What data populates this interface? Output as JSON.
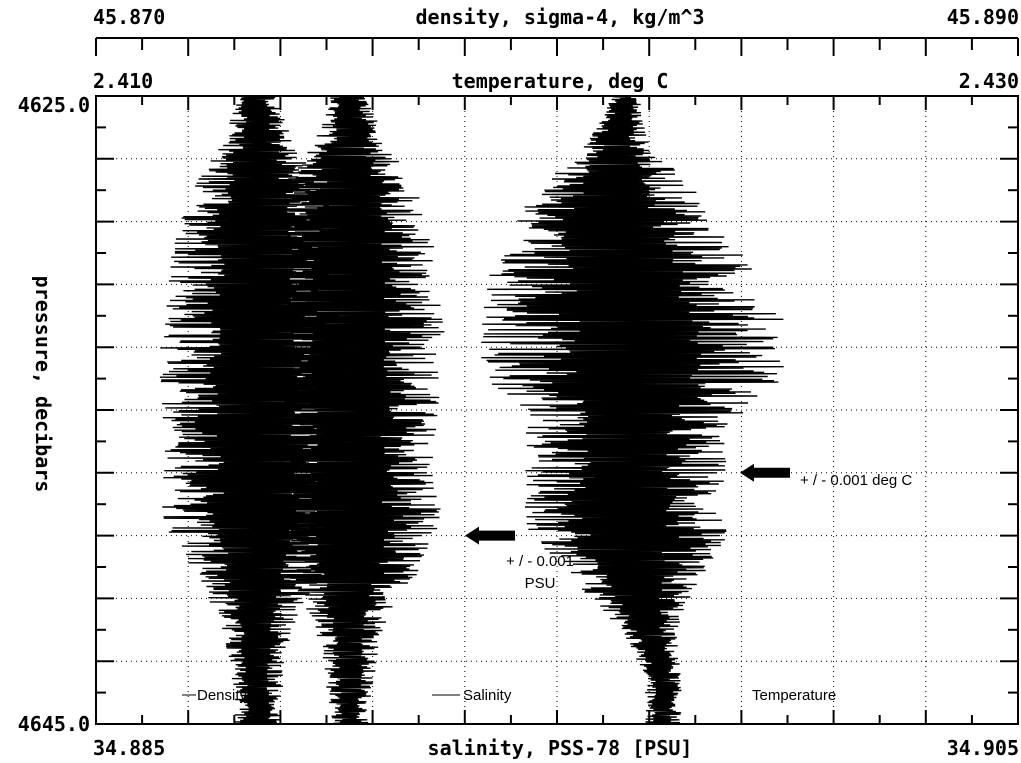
{
  "chart_data": {
    "type": "line",
    "axes": {
      "top_density": {
        "label": "density, sigma-4, kg/m^3",
        "min_label": "45.870",
        "max_label": "45.890",
        "range": [
          45.87,
          45.89
        ]
      },
      "top_temperature": {
        "label": "temperature, deg C",
        "min_label": "2.410",
        "max_label": "2.430",
        "range": [
          2.41,
          2.43
        ]
      },
      "bottom_salinity": {
        "label": "salinity, PSS-78 [PSU]",
        "min_label": "34.885",
        "max_label": "34.905",
        "range": [
          34.885,
          34.905
        ]
      },
      "y_pressure": {
        "label": "pressure, decibars",
        "top_label": "4625.0",
        "bottom_label": "4645.0",
        "range": [
          4625.0,
          4645.0
        ],
        "inverted": true
      }
    },
    "grid": true,
    "series": [
      {
        "name": "Density",
        "axis": "top_density",
        "color": "#000000",
        "center": 45.8755,
        "profile": [
          {
            "p": 4625.0,
            "halfwidth": 0.0004
          },
          {
            "p": 4626.5,
            "halfwidth": 0.0008
          },
          {
            "p": 4628.0,
            "halfwidth": 0.0015
          },
          {
            "p": 4630.0,
            "halfwidth": 0.0019
          },
          {
            "p": 4633.0,
            "halfwidth": 0.0021
          },
          {
            "p": 4636.0,
            "halfwidth": 0.0019
          },
          {
            "p": 4638.5,
            "halfwidth": 0.002
          },
          {
            "p": 4640.0,
            "halfwidth": 0.0016
          },
          {
            "p": 4641.5,
            "halfwidth": 0.0009
          },
          {
            "p": 4643.0,
            "halfwidth": 0.0006
          },
          {
            "p": 4645.0,
            "halfwidth": 0.0004
          }
        ]
      },
      {
        "name": "Salinity",
        "axis": "bottom_salinity",
        "color": "#000000",
        "center": 34.8885,
        "profile": [
          {
            "p": 4625.0,
            "halfwidth": 0.0004
          },
          {
            "p": 4626.5,
            "halfwidth": 0.0008
          },
          {
            "p": 4628.0,
            "halfwidth": 0.0015
          },
          {
            "p": 4630.0,
            "halfwidth": 0.0019
          },
          {
            "p": 4633.0,
            "halfwidth": 0.0022
          },
          {
            "p": 4636.0,
            "halfwidth": 0.002
          },
          {
            "p": 4638.5,
            "halfwidth": 0.0021
          },
          {
            "p": 4640.0,
            "halfwidth": 0.0015
          },
          {
            "p": 4641.5,
            "halfwidth": 0.0009
          },
          {
            "p": 4643.0,
            "halfwidth": 0.0006
          },
          {
            "p": 4645.0,
            "halfwidth": 0.0005
          }
        ]
      },
      {
        "name": "Temperature",
        "axis": "top_temperature",
        "color": "#000000",
        "center": 2.4215,
        "profile": [
          {
            "p": 4625.0,
            "halfwidth": 0.0003,
            "offset": 0.0
          },
          {
            "p": 4626.5,
            "halfwidth": 0.0007,
            "offset": -0.0002
          },
          {
            "p": 4628.0,
            "halfwidth": 0.0017,
            "offset": -0.0002
          },
          {
            "p": 4629.5,
            "halfwidth": 0.0026,
            "offset": -0.0003
          },
          {
            "p": 4631.0,
            "halfwidth": 0.003,
            "offset": 0.0
          },
          {
            "p": 4632.5,
            "halfwidth": 0.0034,
            "offset": 0.0002
          },
          {
            "p": 4634.0,
            "halfwidth": 0.0033,
            "offset": 0.0002
          },
          {
            "p": 4635.5,
            "halfwidth": 0.0022,
            "offset": 0.0
          },
          {
            "p": 4637.0,
            "halfwidth": 0.0022,
            "offset": 0.0
          },
          {
            "p": 4639.0,
            "halfwidth": 0.0022,
            "offset": 0.0
          },
          {
            "p": 4640.5,
            "halfwidth": 0.0014,
            "offset": 0.0002
          },
          {
            "p": 4642.0,
            "halfwidth": 0.0006,
            "offset": 0.0005
          },
          {
            "p": 4643.5,
            "halfwidth": 0.0004,
            "offset": 0.0008
          },
          {
            "p": 4645.0,
            "halfwidth": 0.0004,
            "offset": 0.0008
          }
        ]
      }
    ],
    "annotations": [
      {
        "id": "salinity_precision",
        "line1": "+ / - 0.001",
        "line2": "PSU",
        "pressure": 4639.0,
        "arrows": [
          {
            "direction": "right",
            "salinity": 34.8885,
            "side": "left"
          },
          {
            "direction": "left",
            "salinity": 34.8885,
            "side": "right"
          }
        ]
      },
      {
        "id": "temperature_precision",
        "line1": "+ / - 0.001 deg C",
        "pressure": 4637.0,
        "arrows": [
          {
            "direction": "right",
            "side": "left"
          },
          {
            "direction": "left",
            "side": "right"
          }
        ]
      }
    ]
  }
}
